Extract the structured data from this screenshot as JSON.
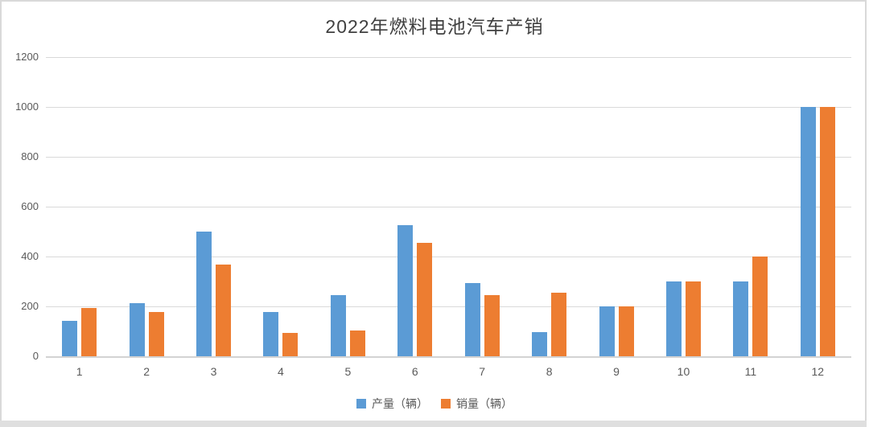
{
  "chart_data": {
    "type": "bar",
    "title": "2022年燃料电池汽车产销",
    "categories": [
      "1",
      "2",
      "3",
      "4",
      "5",
      "6",
      "7",
      "8",
      "9",
      "10",
      "11",
      "12"
    ],
    "series": [
      {
        "name": "产量（辆）",
        "color": "#5B9BD5",
        "values": [
          142,
          213,
          500,
          178,
          245,
          527,
          292,
          97,
          200,
          300,
          300,
          1000
        ]
      },
      {
        "name": "销量（辆）",
        "color": "#ED7D31",
        "values": [
          192,
          178,
          367,
          94,
          104,
          455,
          245,
          255,
          200,
          300,
          400,
          1000
        ]
      }
    ],
    "xlabel": "",
    "ylabel": "",
    "ylim": [
      0,
      1200
    ],
    "yticks": [
      0,
      200,
      400,
      600,
      800,
      1000,
      1200
    ],
    "grid": true,
    "legend_position": "bottom"
  },
  "colors": {
    "title_text": "#404040",
    "axis_text": "#595959",
    "gridline": "#d9d9d9",
    "card_border": "#d9d9d9",
    "bottom_strip": "#dfdfdf",
    "background": "#ffffff"
  }
}
